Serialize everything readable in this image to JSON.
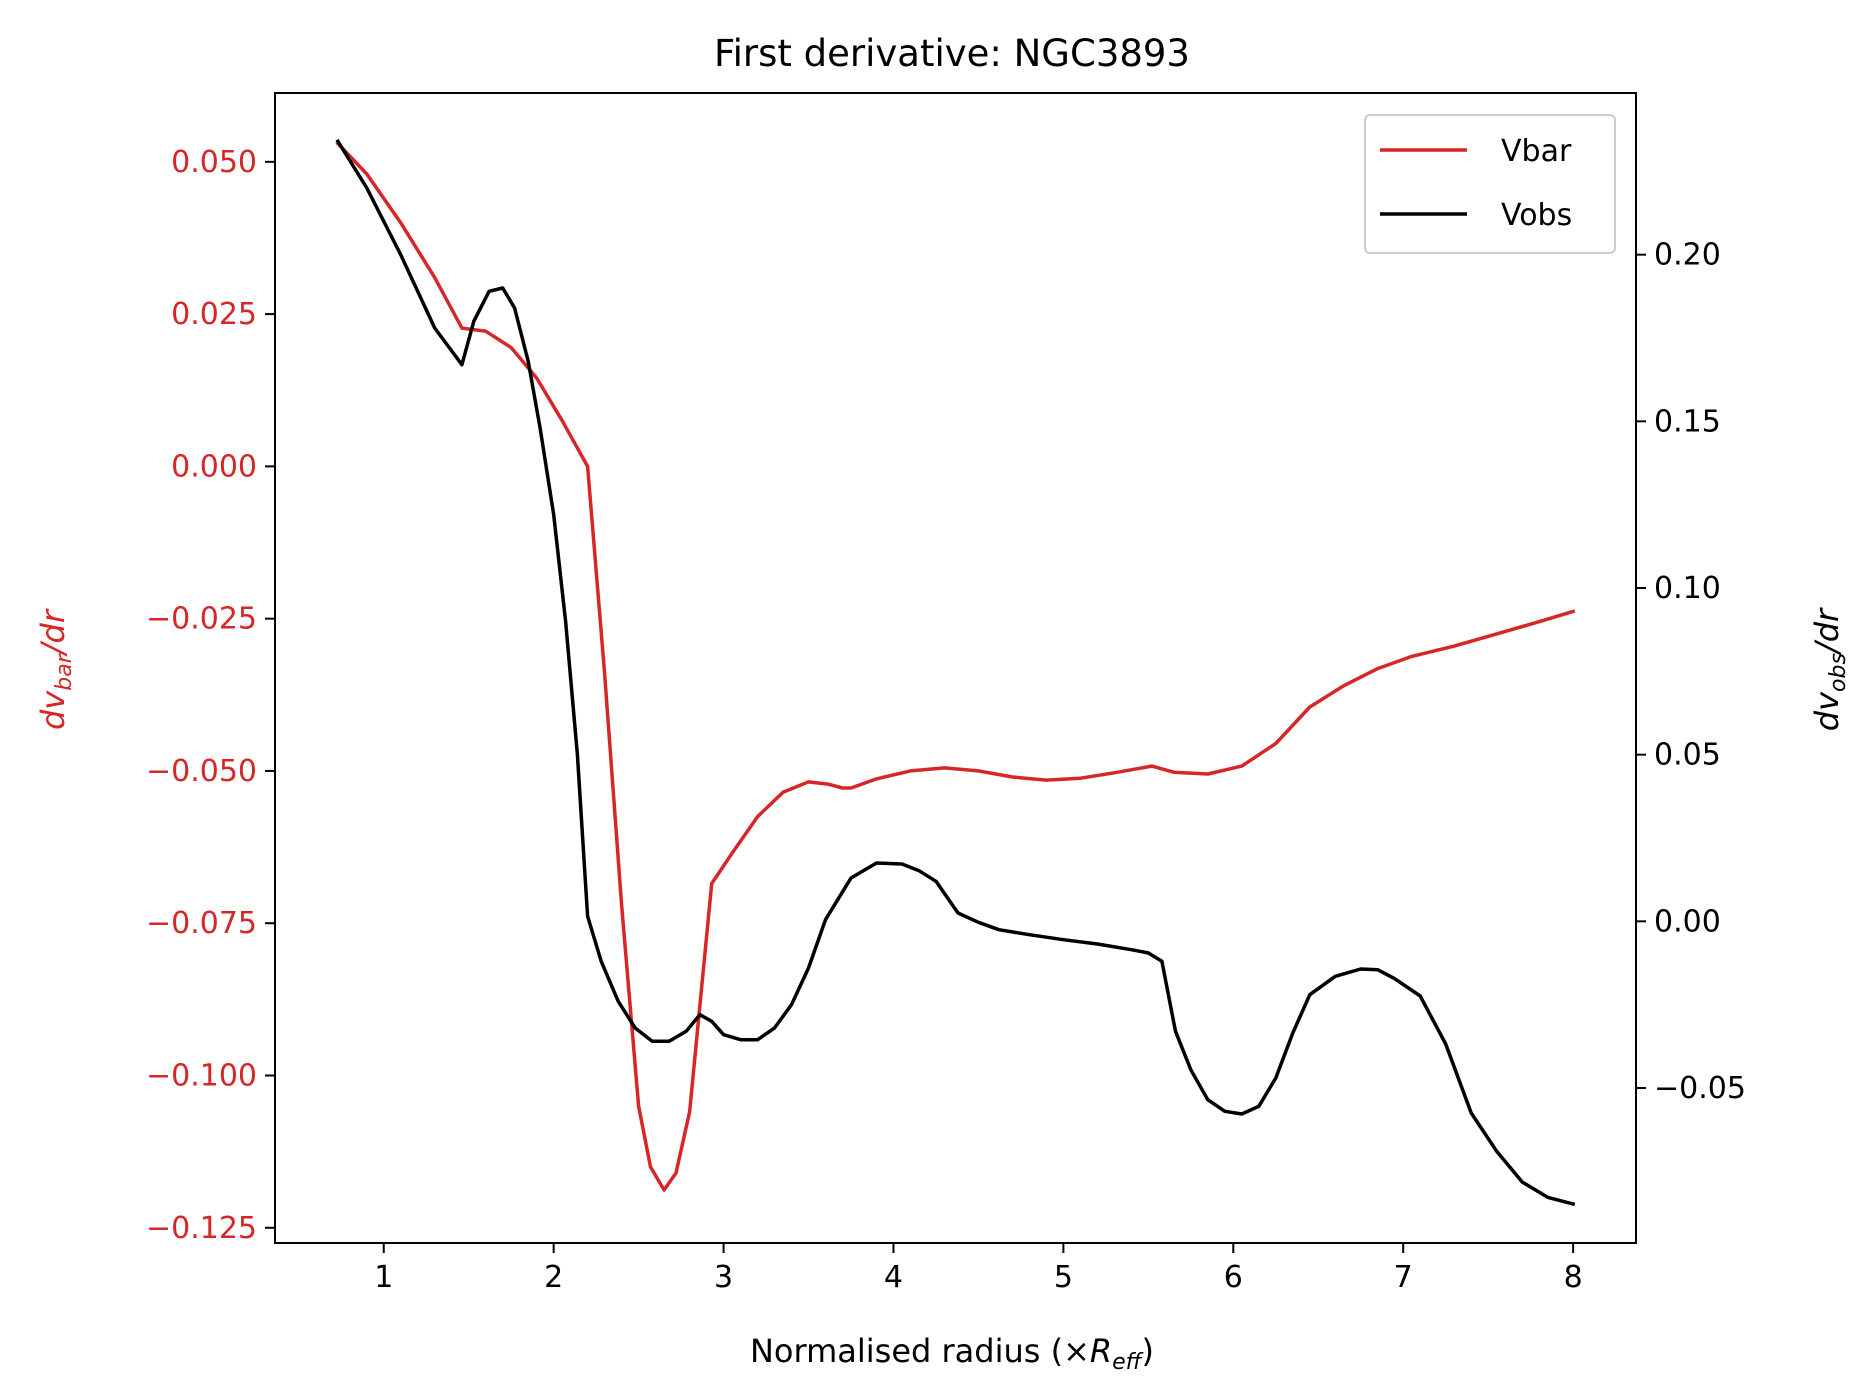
{
  "chart_data": {
    "type": "line",
    "title": "First derivative: NGC3893",
    "xlabel": {
      "main": "Normalised radius (×",
      "sym": "R",
      "sub": "eff",
      "close": ")"
    },
    "ylabel_left": {
      "d": "dv",
      "sub": "bar",
      "rest": "/dr"
    },
    "ylabel_right": {
      "d": "dv",
      "sub": "obs",
      "rest": "/dr"
    },
    "xlim": [
      0.36,
      8.37
    ],
    "ylim_left": [
      -0.1275,
      0.0613
    ],
    "ylim_right": [
      -0.0965,
      0.2485
    ],
    "x_ticks": [
      1,
      2,
      3,
      4,
      5,
      6,
      7,
      8
    ],
    "x_tick_labels": [
      "1",
      "2",
      "3",
      "4",
      "5",
      "6",
      "7",
      "8"
    ],
    "y_left_ticks": [
      0.05,
      0.025,
      0.0,
      -0.025,
      -0.05,
      -0.075,
      -0.1,
      -0.125
    ],
    "y_left_tick_labels": [
      "0.050",
      "0.025",
      "0.000",
      "−0.025",
      "−0.050",
      "−0.075",
      "−0.100",
      "−0.125"
    ],
    "y_right_ticks": [
      0.2,
      0.15,
      0.1,
      0.05,
      0.0,
      -0.05
    ],
    "y_right_tick_labels": [
      "0.20",
      "0.15",
      "0.10",
      "0.05",
      "0.00",
      "−0.05"
    ],
    "legend": {
      "placement": "top-right",
      "entries": [
        "Vbar",
        "Vobs"
      ]
    },
    "colors": {
      "vbar": "#d62728",
      "vobs": "#000000",
      "left_axis": "#d62728",
      "right_axis": "#000000"
    },
    "series": [
      {
        "name": "Vbar",
        "axis": "left",
        "color": "#d62728",
        "x": [
          0.73,
          0.9,
          1.1,
          1.3,
          1.46,
          1.6,
          1.75,
          1.9,
          2.05,
          2.2,
          2.3,
          2.4,
          2.5,
          2.57,
          2.65,
          2.72,
          2.8,
          2.93,
          3.05,
          3.2,
          3.35,
          3.5,
          3.62,
          3.7,
          3.75,
          3.9,
          4.1,
          4.3,
          4.5,
          4.7,
          4.9,
          5.1,
          5.3,
          5.52,
          5.65,
          5.85,
          6.05,
          6.25,
          6.45,
          6.65,
          6.85,
          7.05,
          7.3,
          7.55,
          7.8,
          8.0
        ],
        "y": [
          0.053,
          0.048,
          0.04,
          0.031,
          0.0227,
          0.0222,
          0.0195,
          0.0145,
          0.0075,
          0.0,
          -0.034,
          -0.072,
          -0.105,
          -0.115,
          -0.1188,
          -0.116,
          -0.106,
          -0.0685,
          -0.0635,
          -0.0575,
          -0.0535,
          -0.0518,
          -0.0522,
          -0.0528,
          -0.0528,
          -0.0513,
          -0.05,
          -0.0495,
          -0.05,
          -0.051,
          -0.0515,
          -0.0512,
          -0.0503,
          -0.0492,
          -0.0502,
          -0.0505,
          -0.0492,
          -0.0455,
          -0.0395,
          -0.036,
          -0.0332,
          -0.0312,
          -0.0295,
          -0.0275,
          -0.0255,
          -0.0238
        ]
      },
      {
        "name": "Vobs",
        "axis": "right",
        "color": "#000000",
        "x": [
          0.73,
          0.9,
          1.1,
          1.3,
          1.46,
          1.53,
          1.62,
          1.7,
          1.77,
          1.85,
          1.92,
          2.0,
          2.07,
          2.14,
          2.2,
          2.28,
          2.38,
          2.48,
          2.58,
          2.68,
          2.78,
          2.86,
          2.93,
          3.0,
          3.1,
          3.2,
          3.3,
          3.4,
          3.5,
          3.6,
          3.75,
          3.9,
          4.05,
          4.15,
          4.25,
          4.38,
          4.5,
          4.62,
          4.8,
          5.0,
          5.2,
          5.4,
          5.5,
          5.58,
          5.66,
          5.75,
          5.85,
          5.95,
          6.05,
          6.15,
          6.25,
          6.35,
          6.45,
          6.6,
          6.75,
          6.85,
          6.95,
          7.1,
          7.25,
          7.4,
          7.55,
          7.7,
          7.85,
          8.0
        ],
        "y": [
          0.234,
          0.22,
          0.2,
          0.178,
          0.167,
          0.18,
          0.189,
          0.19,
          0.184,
          0.168,
          0.148,
          0.122,
          0.09,
          0.05,
          0.0015,
          -0.012,
          -0.024,
          -0.032,
          -0.036,
          -0.036,
          -0.033,
          -0.028,
          -0.03,
          -0.034,
          -0.0355,
          -0.0355,
          -0.032,
          -0.025,
          -0.014,
          0.0005,
          0.013,
          0.0175,
          0.0172,
          0.0152,
          0.012,
          0.0025,
          -0.0003,
          -0.0025,
          -0.004,
          -0.0055,
          -0.0068,
          -0.0085,
          -0.0095,
          -0.012,
          -0.033,
          -0.0445,
          -0.0535,
          -0.057,
          -0.0578,
          -0.0555,
          -0.047,
          -0.0335,
          -0.022,
          -0.0165,
          -0.0143,
          -0.0145,
          -0.0172,
          -0.0224,
          -0.0368,
          -0.0575,
          -0.069,
          -0.0782,
          -0.0828,
          -0.0848
        ]
      }
    ]
  }
}
